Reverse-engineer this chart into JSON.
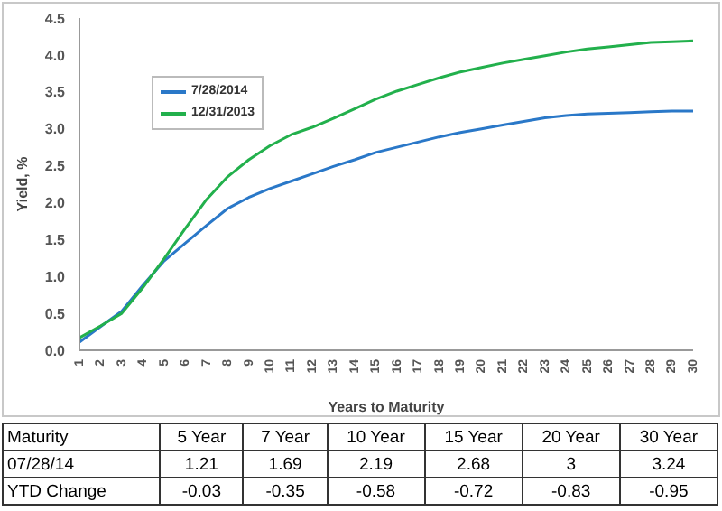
{
  "chart_data": {
    "type": "line",
    "xlabel": "Years to Maturity",
    "ylabel": "Yield, %",
    "categories": [
      "1",
      "2",
      "3",
      "4",
      "5",
      "6",
      "7",
      "8",
      "9",
      "10",
      "11",
      "12",
      "13",
      "14",
      "15",
      "16",
      "17",
      "18",
      "19",
      "20",
      "21",
      "22",
      "23",
      "24",
      "25",
      "26",
      "27",
      "28",
      "29",
      "30"
    ],
    "series": [
      {
        "name": "7/28/2014",
        "color": "#2a78c8",
        "values": [
          0.11,
          0.32,
          0.53,
          0.88,
          1.21,
          1.45,
          1.69,
          1.92,
          2.07,
          2.19,
          2.29,
          2.39,
          2.49,
          2.58,
          2.68,
          2.75,
          2.82,
          2.89,
          2.95,
          3.0,
          3.05,
          3.1,
          3.15,
          3.18,
          3.2,
          3.21,
          3.22,
          3.23,
          3.24,
          3.24
        ]
      },
      {
        "name": "12/31/2013",
        "color": "#22b04c",
        "values": [
          0.17,
          0.33,
          0.5,
          0.85,
          1.24,
          1.65,
          2.04,
          2.35,
          2.58,
          2.77,
          2.92,
          3.02,
          3.14,
          3.27,
          3.4,
          3.51,
          3.6,
          3.69,
          3.77,
          3.83,
          3.89,
          3.94,
          3.99,
          4.04,
          4.08,
          4.11,
          4.14,
          4.17,
          4.18,
          4.19
        ]
      }
    ],
    "ylim": [
      0,
      4.5
    ],
    "yticks": [
      {
        "value": 0,
        "label": "0.0"
      },
      {
        "value": 0.5,
        "label": "0.5"
      },
      {
        "value": 1,
        "label": "1.0"
      },
      {
        "value": 1.5,
        "label": "1.5"
      },
      {
        "value": 2,
        "label": "2.0"
      },
      {
        "value": 2.5,
        "label": "2.5"
      },
      {
        "value": 3,
        "label": "3.0"
      },
      {
        "value": 3.5,
        "label": "3.5"
      },
      {
        "value": 4,
        "label": "4.0"
      },
      {
        "value": 4.5,
        "label": "4.5"
      }
    ],
    "grid": false,
    "legend": "top left",
    "marker": "none",
    "line_style": "solid",
    "annotations": [
      "Maturity",
      "5 Year",
      "7 Year",
      "10 Year",
      "15 Year",
      "20 Year",
      "30 Year",
      "07/28/14",
      "1.21",
      "1.69",
      "2.19",
      "2.68",
      "3",
      "3.24",
      "YTD Change",
      "-0.03",
      "-0.35",
      "-0.58",
      "-0.72",
      "-0.83",
      "-0.95"
    ]
  }
}
